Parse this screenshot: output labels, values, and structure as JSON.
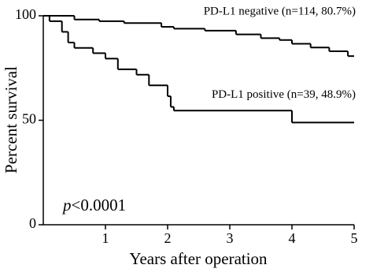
{
  "chart_data": {
    "type": "step",
    "x_label": "Years after operation",
    "y_label": "Percent survival",
    "xlim": [
      0,
      5
    ],
    "xticks": [
      1,
      2,
      3,
      4,
      5
    ],
    "ylim": [
      0,
      100
    ],
    "yticks": [
      0,
      50,
      100
    ],
    "p_value": [
      "p",
      "<0.0001"
    ],
    "series": [
      {
        "name": "PD-L1 negative (n=114, 80.7%)",
        "color": "#000000",
        "x": [
          0,
          0.5,
          0.9,
          1.3,
          1.9,
          2.1,
          2.6,
          3.1,
          3.5,
          3.8,
          4.0,
          4.3,
          4.6,
          4.9
        ],
        "values": [
          100,
          98.2,
          97.4,
          96.5,
          94.7,
          93.8,
          92.9,
          91.1,
          89.3,
          88.4,
          86.6,
          84.8,
          83.0,
          80.7
        ]
      },
      {
        "name": "PD-L1 positive (n=39, 48.9%)",
        "color": "#000000",
        "x": [
          0,
          0.1,
          0.3,
          0.4,
          0.5,
          0.8,
          1.0,
          1.2,
          1.5,
          1.7,
          2.0,
          2.05,
          2.1,
          4.0
        ],
        "values": [
          100,
          97.4,
          92.3,
          87.2,
          84.6,
          82.1,
          79.5,
          74.4,
          71.8,
          66.7,
          61.5,
          56.4,
          54.6,
          48.9
        ]
      }
    ]
  }
}
